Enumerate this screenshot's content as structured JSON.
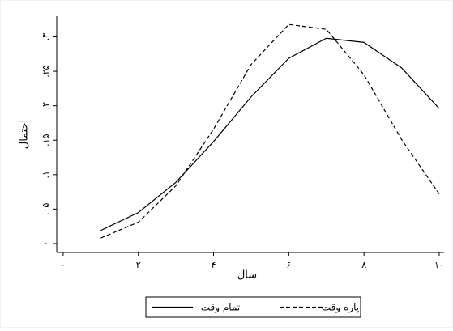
{
  "chart_data": {
    "type": "line",
    "x_label": "سال",
    "y_label": "احتمال",
    "x": [
      1,
      2,
      3,
      4,
      5,
      6,
      7,
      8,
      9,
      10
    ],
    "series": [
      {
        "name": "تمام وقت",
        "color": "#000000",
        "dash": false,
        "values": [
          0.019,
          0.045,
          0.089,
          0.148,
          0.213,
          0.269,
          0.298,
          0.292,
          0.255,
          0.196
        ]
      },
      {
        "name": "پاره وقت",
        "color": "#000000",
        "dash": true,
        "values": [
          0.008,
          0.031,
          0.084,
          0.166,
          0.26,
          0.318,
          0.311,
          0.245,
          0.151,
          0.072
        ]
      }
    ],
    "xlim": [
      -0.17,
      10.13
    ],
    "xticks": [
      {
        "value": 0,
        "label": "۰"
      },
      {
        "value": 2,
        "label": "۲"
      },
      {
        "value": 4,
        "label": "۴"
      },
      {
        "value": 6,
        "label": "۶"
      },
      {
        "value": 8,
        "label": "۸"
      },
      {
        "value": 10,
        "label": "۱۰"
      }
    ],
    "ylim": [
      -0.013,
      0.33
    ],
    "yticks": [
      {
        "value": 0,
        "label": "۰"
      },
      {
        "value": 0.05,
        "label": ".۰۵"
      },
      {
        "value": 0.1,
        "label": ".۱"
      },
      {
        "value": 0.15,
        "label": ".۱۵"
      },
      {
        "value": 0.2,
        "label": ".۲"
      },
      {
        "value": 0.25,
        "label": ".۲۵"
      },
      {
        "value": 0.3,
        "label": ".۳"
      }
    ],
    "legend": "bottom"
  }
}
